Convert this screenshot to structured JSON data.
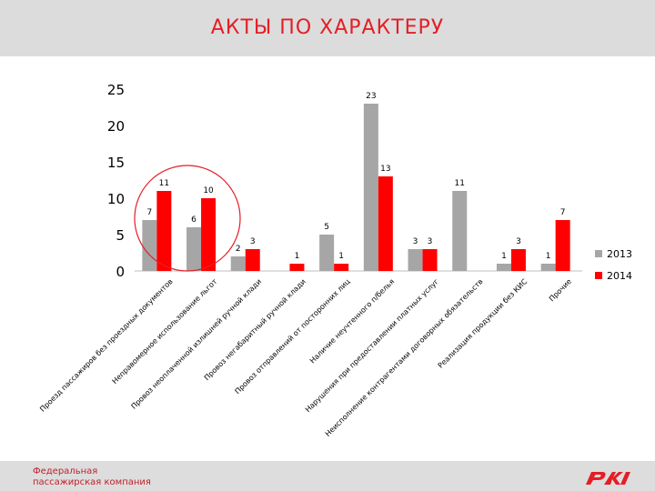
{
  "page": {
    "title": "АКТЫ ПО ХАРАКТЕРУ",
    "company_line1": "Федеральная",
    "company_line2": "пассажирская компания",
    "logo_text": "РЖД",
    "accent_color": "#e41e26"
  },
  "chart_data": {
    "type": "bar",
    "title": "",
    "xlabel": "",
    "ylabel": "",
    "ylim": [
      0,
      25
    ],
    "yticks": [
      0,
      5,
      10,
      15,
      20,
      25
    ],
    "grid": false,
    "legend_position": "right",
    "categories": [
      "Проезд пассажиров без проездных документов",
      "Неправомерное использование льгот",
      "Провоз неоплаченной излишней ручной клади",
      "Провоз негабаритный ручной клади",
      "Провоз отправлений от посторонних лиц",
      "Наличие неучтенного п/белья",
      "Нарушения при предоставлении платных услуг",
      "Неисполнение контрагентами договорных обязательств",
      "Реализация продукции без КИС",
      "Прочие"
    ],
    "series": [
      {
        "name": "2013",
        "color": "#a6a6a6",
        "values": [
          7,
          6,
          2,
          0,
          5,
          23,
          3,
          11,
          1,
          1
        ],
        "labels": [
          "7",
          "6",
          "2",
          "",
          "5",
          "23",
          "3",
          "11",
          "1",
          "1"
        ]
      },
      {
        "name": "2014",
        "color": "#ff0000",
        "values": [
          11,
          10,
          3,
          1,
          1,
          13,
          3,
          0,
          3,
          7
        ],
        "labels": [
          "11",
          "10",
          "3",
          "1",
          "1",
          "13",
          "3",
          "",
          "3",
          "7"
        ]
      }
    ],
    "annotation": "red circle around first two categories"
  }
}
